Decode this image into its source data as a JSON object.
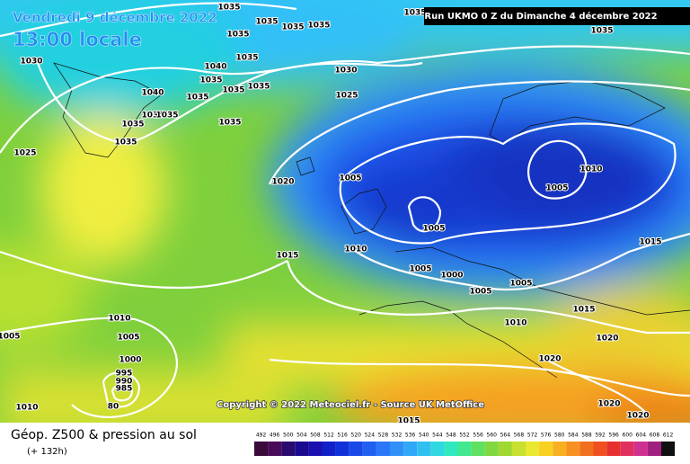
{
  "header": {
    "date": "Vendredi 9 décembre 2022",
    "time": "13:00 locale",
    "run": "Run UKMO 0 Z du Dimanche 4 décembre 2022"
  },
  "map": {
    "copyright": "Copyright © 2022 Meteociel.fr - Source UK MetOffice",
    "isobar_labels": [
      1035,
      1035,
      1035,
      1035,
      1035,
      1035,
      1030,
      1035,
      1035,
      1040,
      1040,
      1035,
      1035,
      1035,
      1035,
      1035,
      1035,
      1035,
      1035,
      1035,
      1030,
      1025,
      1025,
      1020,
      1005,
      1005,
      1010,
      1005,
      1000,
      1005,
      1005,
      1010,
      1005,
      1015,
      1015,
      1015,
      1010,
      1020,
      1020,
      1020,
      1020,
      1010,
      1005,
      1005,
      1000,
      995,
      990,
      985,
      80,
      1010,
      1015
    ]
  },
  "legend": {
    "title": "Géop. Z500 & pression au sol",
    "lead": "(+ 132h)",
    "colorbar": {
      "labels": [
        492,
        496,
        500,
        504,
        508,
        512,
        516,
        520,
        524,
        528,
        532,
        536,
        540,
        544,
        548,
        552,
        556,
        560,
        564,
        568,
        572,
        576,
        580,
        584,
        588,
        592,
        596,
        600,
        604,
        608,
        612
      ]
    }
  }
}
